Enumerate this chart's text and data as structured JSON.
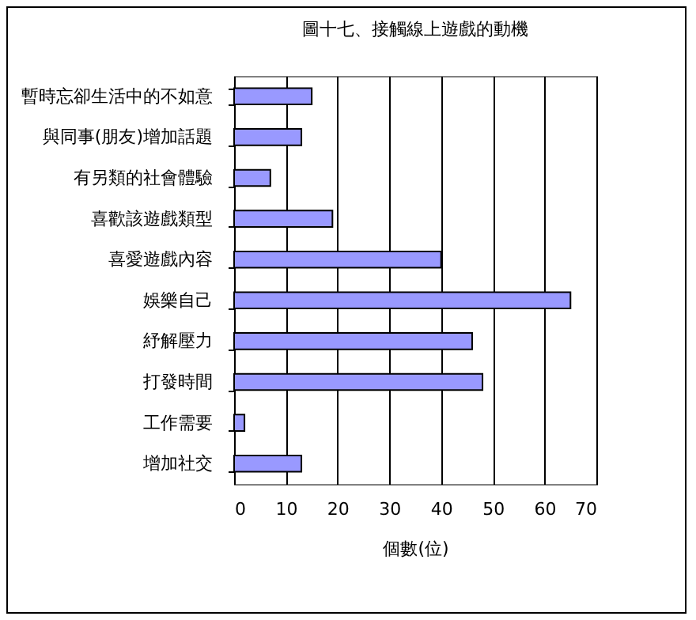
{
  "chart_data": {
    "type": "bar",
    "orientation": "horizontal",
    "title": "圖十七、接觸線上遊戲的動機",
    "xlabel": "個數(位)",
    "categories": [
      "暫時忘卻生活中的不如意",
      "與同事(朋友)增加話題",
      "有另類的社會體驗",
      "喜歡該遊戲類型",
      "喜愛遊戲內容",
      "娛樂自己",
      "紓解壓力",
      "打發時間",
      "工作需要",
      "增加社交"
    ],
    "values": [
      15,
      13,
      7,
      19,
      40,
      65,
      46,
      48,
      2,
      13
    ],
    "color": "#9999ff",
    "xlim": [
      0,
      70
    ],
    "xticks": [
      0,
      10,
      20,
      30,
      40,
      50,
      60,
      70
    ],
    "grid": "x"
  }
}
